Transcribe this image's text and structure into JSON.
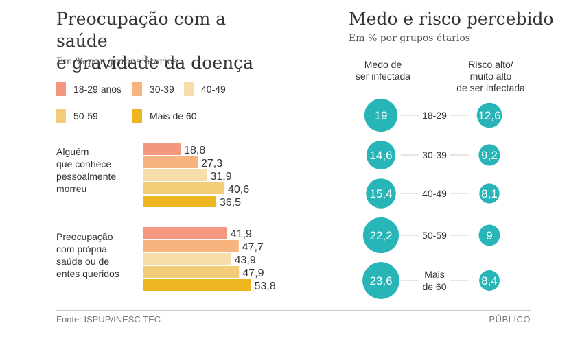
{
  "left_chart": {
    "title_line1": "Preocupação com a saúde",
    "title_line2": "e gravidade da doença",
    "subtitle": "Em % por grupos étarios"
  },
  "right_chart": {
    "title": "Medo e risco percebido",
    "subtitle": "Em % por grupos étarios",
    "col_fear_line1": "Medo de",
    "col_fear_line2": "ser infectada",
    "col_risk_line1": "Risco alto/",
    "col_risk_line2": "muito alto",
    "col_risk_line3": "de ser infectada"
  },
  "colors": {
    "age_18_29": "#f4977f",
    "age_30_39": "#f8b47e",
    "age_40_49": "#f6ddaa",
    "age_50_59": "#f3cc77",
    "age_60_plus": "#edb520",
    "circle": "#27b5b7",
    "circle_text": "#ffffff"
  },
  "legend": [
    "18-29 anos",
    "30-39",
    "40-49",
    "50-59",
    "Mais de 60"
  ],
  "chart_data": [
    {
      "type": "bar",
      "orientation": "horizontal",
      "title": "Preocupação com a saúde e gravidade da doença",
      "subtitle": "Em % por grupos étarios",
      "groups": [
        {
          "label_lines": [
            "Alguém",
            "que conhece",
            "pessoalmente",
            "morreu"
          ],
          "values": [
            18.8,
            27.3,
            31.9,
            40.6,
            36.5
          ],
          "value_labels": [
            "18,8",
            "27,3",
            "31,9",
            "40,6",
            "36,5"
          ]
        },
        {
          "label_lines": [
            "Preocupação",
            "com própria",
            "saúde ou de",
            "entes queridos"
          ],
          "values": [
            41.9,
            47.7,
            43.9,
            47.9,
            53.8
          ],
          "value_labels": [
            "41,9",
            "47,7",
            "43,9",
            "47,9",
            "53,8"
          ]
        }
      ],
      "series_names": [
        "18-29 anos",
        "30-39",
        "40-49",
        "50-59",
        "Mais de 60"
      ],
      "legend_position": "top"
    },
    {
      "type": "bubble",
      "title": "Medo e risco percebido",
      "subtitle": "Em % por grupos étarios",
      "categories": [
        [
          "18-29"
        ],
        [
          "30-39"
        ],
        [
          "40-49"
        ],
        [
          "50-59"
        ],
        [
          "Mais",
          "de 60"
        ]
      ],
      "series": [
        {
          "name": "Medo de ser infectada",
          "values": [
            19,
            14.6,
            15.4,
            22.2,
            23.6
          ],
          "value_labels": [
            "19",
            "14,6",
            "15,4",
            "22,2",
            "23,6"
          ]
        },
        {
          "name": "Risco alto/muito alto de ser infectada",
          "values": [
            12.6,
            9.2,
            8.1,
            9,
            8.4
          ],
          "value_labels": [
            "12,6",
            "9,2",
            "8,1",
            "9",
            "8,4"
          ]
        }
      ]
    }
  ],
  "footer": {
    "source": "Fonte: ISPUP/INESC TEC",
    "brand": "PÚBLICO"
  }
}
